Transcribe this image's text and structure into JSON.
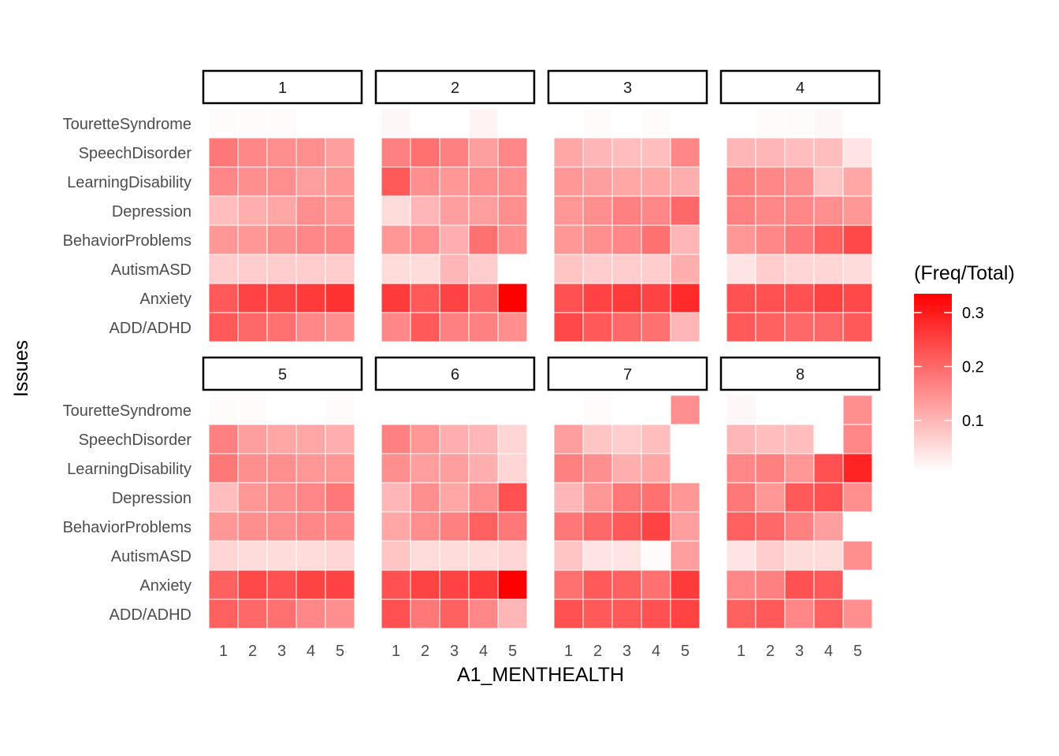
{
  "chart_data": {
    "type": "heatmap",
    "facet_variable_values": [
      "1",
      "2",
      "3",
      "4",
      "5",
      "6",
      "7",
      "8"
    ],
    "x_categories": [
      "1",
      "2",
      "3",
      "4",
      "5"
    ],
    "y_categories": [
      "TouretteSyndrome",
      "SpeechDisorder",
      "LearningDisability",
      "Depression",
      "BehaviorProblems",
      "AutismASD",
      "Anxiety",
      "ADD/ADHD"
    ],
    "xlabel": "A1_MENTHEALTH",
    "ylabel": "Issues",
    "legend": {
      "title": "(Freq/Total)",
      "ticks": [
        "0.1",
        "0.2",
        "0.3"
      ],
      "tick_values": [
        0.1,
        0.2,
        0.3
      ],
      "min": 0.005,
      "max": 0.335,
      "low_color": "#ffffff",
      "high_color": "#ff0000",
      "placement": "right"
    },
    "facets": [
      {
        "label": "1",
        "values": [
          [
            0.01,
            0.01,
            0.01,
            0.005,
            null
          ],
          [
            0.18,
            0.16,
            0.15,
            0.15,
            0.13
          ],
          [
            0.16,
            0.15,
            0.15,
            0.13,
            0.14
          ],
          [
            0.09,
            0.11,
            0.12,
            0.15,
            0.14
          ],
          [
            0.14,
            0.14,
            0.15,
            0.16,
            0.16
          ],
          [
            0.07,
            0.07,
            0.07,
            0.07,
            0.07
          ],
          [
            0.22,
            0.25,
            0.25,
            0.26,
            0.27
          ],
          [
            0.22,
            0.2,
            0.19,
            0.16,
            0.15
          ]
        ]
      },
      {
        "label": "2",
        "values": [
          [
            0.015,
            null,
            null,
            0.02,
            null
          ],
          [
            0.17,
            0.19,
            0.17,
            0.13,
            0.16
          ],
          [
            0.22,
            0.15,
            0.14,
            0.15,
            0.15
          ],
          [
            0.05,
            0.1,
            0.13,
            0.13,
            0.15
          ],
          [
            0.14,
            0.15,
            0.11,
            0.19,
            0.15
          ],
          [
            0.05,
            0.05,
            0.1,
            0.07,
            null
          ],
          [
            0.26,
            0.22,
            0.25,
            0.2,
            0.335
          ],
          [
            0.16,
            0.22,
            0.17,
            0.17,
            0.15
          ]
        ]
      },
      {
        "label": "3",
        "values": [
          [
            0.005,
            0.01,
            null,
            0.01,
            null
          ],
          [
            0.12,
            0.1,
            0.09,
            0.09,
            0.16
          ],
          [
            0.14,
            0.13,
            0.12,
            0.12,
            0.11
          ],
          [
            0.14,
            0.15,
            0.17,
            0.16,
            0.2
          ],
          [
            0.14,
            0.15,
            0.16,
            0.19,
            0.1
          ],
          [
            0.08,
            0.07,
            0.07,
            0.07,
            0.11
          ],
          [
            0.23,
            0.25,
            0.26,
            0.25,
            0.28
          ],
          [
            0.24,
            0.22,
            0.2,
            0.19,
            0.1
          ]
        ]
      },
      {
        "label": "4",
        "values": [
          [
            null,
            0.01,
            0.01,
            0.015,
            null
          ],
          [
            0.1,
            0.1,
            0.09,
            0.09,
            0.04
          ],
          [
            0.17,
            0.16,
            0.15,
            0.08,
            0.12
          ],
          [
            0.17,
            0.16,
            0.16,
            0.15,
            0.14
          ],
          [
            0.14,
            0.16,
            0.18,
            0.21,
            0.24
          ],
          [
            0.04,
            0.07,
            0.06,
            0.06,
            0.05
          ],
          [
            0.23,
            0.23,
            0.23,
            0.25,
            0.24
          ],
          [
            0.22,
            0.21,
            0.2,
            0.2,
            0.22
          ]
        ]
      },
      {
        "label": "5",
        "values": [
          [
            0.01,
            0.01,
            0.005,
            0.005,
            0.01
          ],
          [
            0.17,
            0.13,
            0.12,
            0.12,
            0.11
          ],
          [
            0.18,
            0.15,
            0.15,
            0.14,
            0.14
          ],
          [
            0.09,
            0.14,
            0.15,
            0.16,
            0.18
          ],
          [
            0.14,
            0.15,
            0.15,
            0.16,
            0.16
          ],
          [
            0.06,
            0.05,
            0.05,
            0.05,
            0.06
          ],
          [
            0.21,
            0.24,
            0.23,
            0.25,
            0.25
          ],
          [
            0.21,
            0.2,
            0.19,
            0.16,
            0.15
          ]
        ]
      },
      {
        "label": "6",
        "values": [
          [
            0.005,
            0.005,
            0.005,
            null,
            null
          ],
          [
            0.17,
            0.14,
            0.11,
            0.1,
            0.06
          ],
          [
            0.15,
            0.13,
            0.13,
            0.11,
            0.06
          ],
          [
            0.1,
            0.15,
            0.12,
            0.15,
            0.23
          ],
          [
            0.12,
            0.15,
            0.17,
            0.21,
            0.18
          ],
          [
            0.08,
            0.05,
            0.05,
            0.05,
            0.06
          ],
          [
            0.23,
            0.25,
            0.25,
            0.26,
            0.335
          ],
          [
            0.23,
            0.18,
            0.21,
            0.16,
            0.1
          ]
        ]
      },
      {
        "label": "7",
        "values": [
          [
            null,
            0.01,
            null,
            null,
            0.15
          ],
          [
            0.13,
            0.08,
            0.07,
            0.09,
            null
          ],
          [
            0.17,
            0.15,
            0.11,
            0.12,
            null
          ],
          [
            0.1,
            0.14,
            0.18,
            0.19,
            0.14
          ],
          [
            0.18,
            0.2,
            0.22,
            0.25,
            0.13
          ],
          [
            0.08,
            0.04,
            0.04,
            0.01,
            0.13
          ],
          [
            0.19,
            0.22,
            0.21,
            0.19,
            0.26
          ],
          [
            0.23,
            0.22,
            0.22,
            0.23,
            0.25
          ]
        ]
      },
      {
        "label": "8",
        "values": [
          [
            0.015,
            null,
            null,
            null,
            0.15
          ],
          [
            0.1,
            0.09,
            0.09,
            null,
            0.16
          ],
          [
            0.16,
            0.17,
            0.14,
            0.23,
            0.29
          ],
          [
            0.18,
            0.14,
            0.22,
            0.23,
            0.15
          ],
          [
            0.21,
            0.2,
            0.17,
            0.13,
            null
          ],
          [
            0.04,
            0.07,
            0.05,
            0.05,
            0.15
          ],
          [
            0.16,
            0.17,
            0.23,
            0.22,
            null
          ],
          [
            0.21,
            0.22,
            0.16,
            0.21,
            0.15
          ]
        ]
      }
    ]
  }
}
